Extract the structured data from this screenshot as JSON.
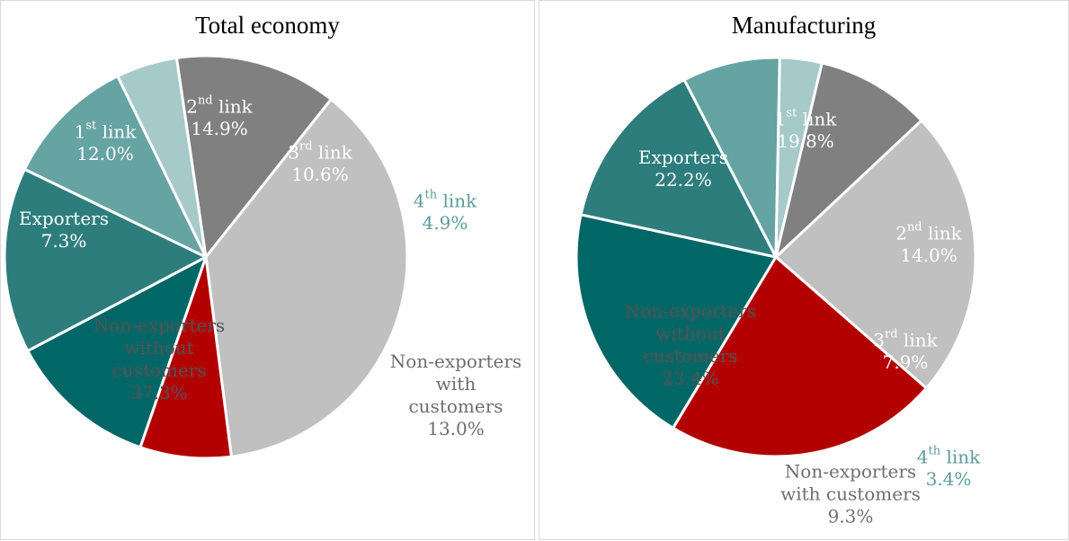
{
  "chart_data": [
    {
      "type": "pie",
      "title": "Total economy",
      "slices": [
        {
          "name": "1st link",
          "label_lines": [
            "1|st| link",
            "12.0%"
          ],
          "value": 12.0,
          "color": "#006666",
          "label_color": "#ffffff"
        },
        {
          "name": "2nd link",
          "label_lines": [
            "2|nd| link",
            "14.9%"
          ],
          "value": 14.9,
          "color": "#2e7d7d",
          "label_color": "#ffffff"
        },
        {
          "name": "3rd link",
          "label_lines": [
            "3|rd| link",
            "10.6%"
          ],
          "value": 10.6,
          "color": "#66a3a3",
          "label_color": "#ffffff"
        },
        {
          "name": "4th link",
          "label_lines": [
            "4|th| link",
            "4.9%"
          ],
          "value": 4.9,
          "color": "#a6c9c9",
          "label_color": "#5d9a9a"
        },
        {
          "name": "Non-exporters with customers",
          "label_lines": [
            "Non-exporters",
            "with",
            "customers",
            "13.0%"
          ],
          "value": 13.0,
          "color": "#808080",
          "label_color": "#6e6e6e"
        },
        {
          "name": "Non-exporters without customers",
          "label_lines": [
            "Non-exporters",
            "without",
            "customers",
            "37.3%"
          ],
          "value": 37.3,
          "color": "#c0c0c0",
          "label_color": "#555555"
        },
        {
          "name": "Exporters",
          "label_lines": [
            "Exporters",
            "7.3%"
          ],
          "value": 7.3,
          "color": "#b30000",
          "label_color": "#ffffff"
        }
      ]
    },
    {
      "type": "pie",
      "title": "Manufacturing",
      "slices": [
        {
          "name": "1st link",
          "label_lines": [
            "1|st| link",
            "19.8%"
          ],
          "value": 19.8,
          "color": "#006666",
          "label_color": "#ffffff"
        },
        {
          "name": "2nd link",
          "label_lines": [
            "2|nd| link",
            "14.0%"
          ],
          "value": 14.0,
          "color": "#2e7d7d",
          "label_color": "#ffffff"
        },
        {
          "name": "3rd link",
          "label_lines": [
            "3|rd| link",
            "7.9%"
          ],
          "value": 7.9,
          "color": "#66a3a3",
          "label_color": "#ffffff"
        },
        {
          "name": "4th link",
          "label_lines": [
            "4|th| link",
            "3.4%"
          ],
          "value": 3.4,
          "color": "#a6c9c9",
          "label_color": "#5d9a9a"
        },
        {
          "name": "Non-exporters with customers",
          "label_lines": [
            "Non-exporters",
            "with customers",
            "9.3%"
          ],
          "value": 9.3,
          "color": "#808080",
          "label_color": "#6e6e6e"
        },
        {
          "name": "Non-exporters without customers",
          "label_lines": [
            "Non-exporters",
            "without",
            "customers",
            "23.4%"
          ],
          "value": 23.4,
          "color": "#c0c0c0",
          "label_color": "#555555"
        },
        {
          "name": "Exporters",
          "label_lines": [
            "Exporters",
            "22.2%"
          ],
          "value": 22.2,
          "color": "#b30000",
          "label_color": "#ffffff"
        }
      ]
    }
  ]
}
